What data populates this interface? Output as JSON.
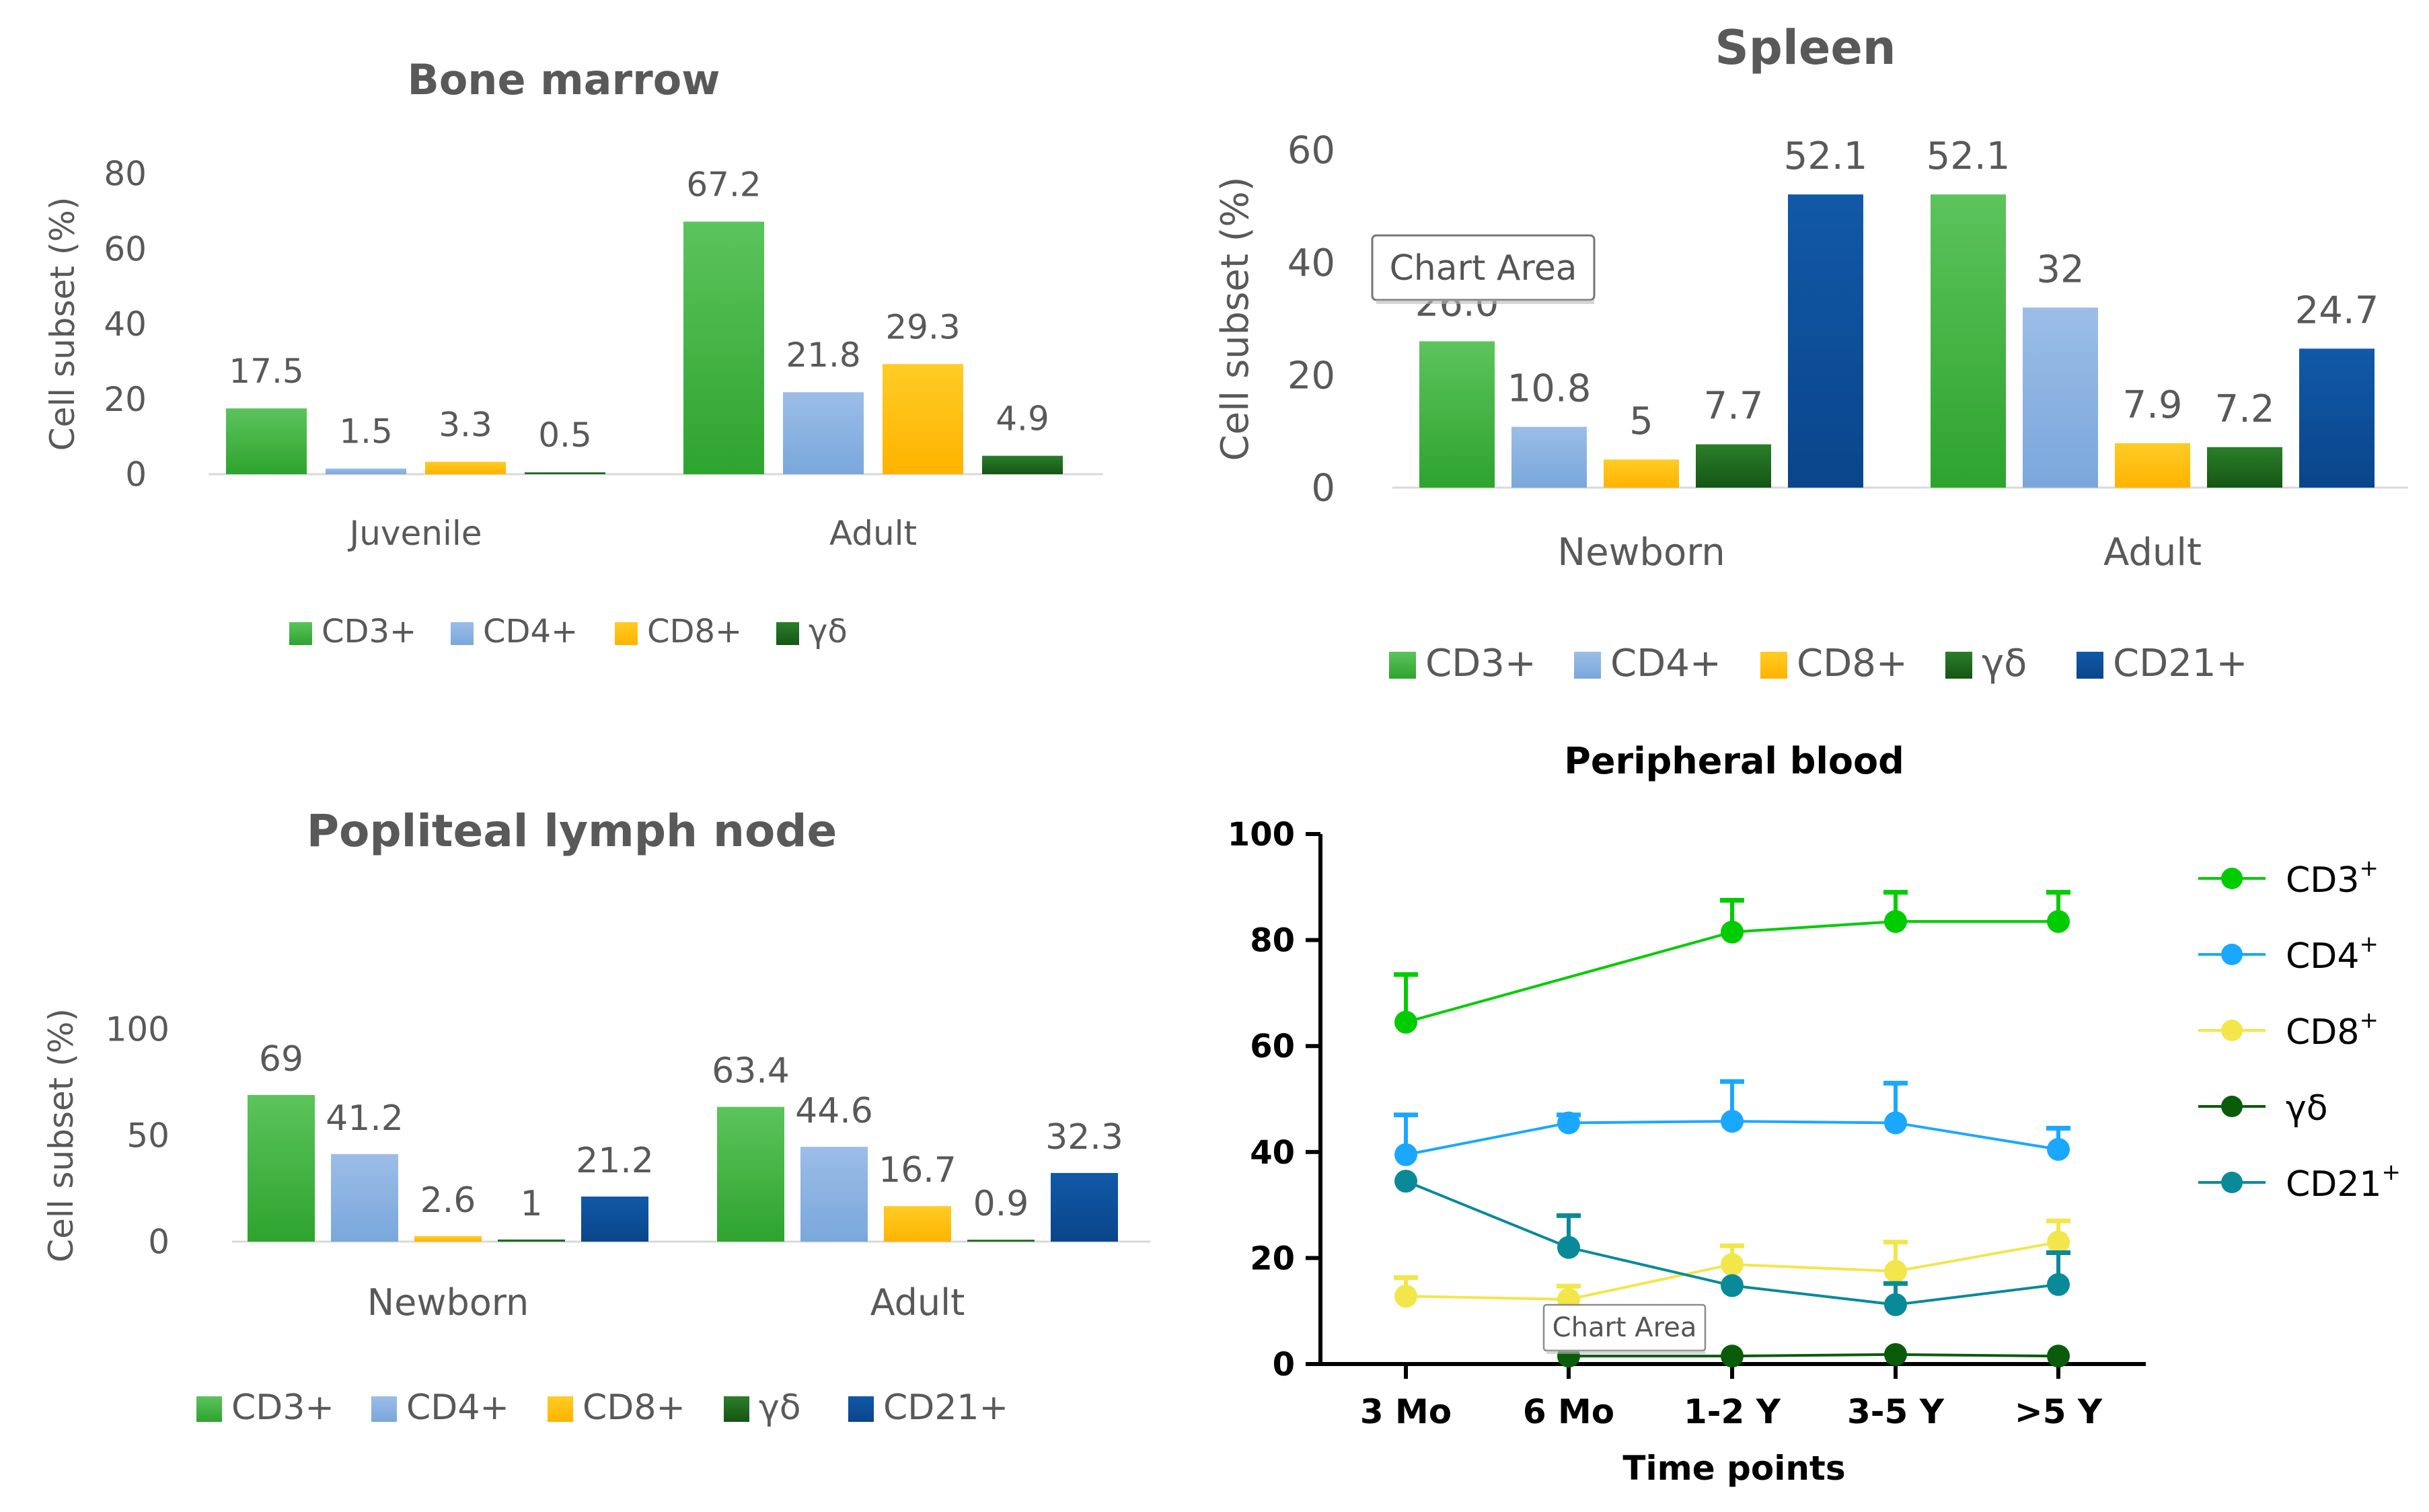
{
  "colors": {
    "CD3+": "#3db43d",
    "CD4+": "#8db3e2",
    "CD8+": "#ffc000",
    "gd": "#1e6b1e",
    "CD21+": "#0b4f9c",
    "axis_text": "#595959",
    "line_cd3": "#00cc00",
    "line_cd4": "#1aa8ff",
    "line_cd8": "#f2e64a",
    "line_gd": "#0a5c0a",
    "line_cd21": "#0a8a99"
  },
  "tooltips": [
    "Chart Area",
    "Chart Area"
  ],
  "chart_data": [
    {
      "id": "bone_marrow",
      "type": "bar",
      "title": "Bone marrow",
      "ylabel": "Cell subset (%)",
      "xlabel": "",
      "ylim": [
        0,
        80
      ],
      "yticks": [
        "0",
        "20",
        "40",
        "60",
        "80"
      ],
      "categories": [
        "Juvenile",
        "Adult"
      ],
      "series": [
        {
          "name": "CD3+",
          "key": "CD3+",
          "values": [
            17.5,
            67.2
          ],
          "labels": [
            "17.5",
            "67.2"
          ]
        },
        {
          "name": "CD4+",
          "key": "CD4+",
          "values": [
            1.5,
            21.8
          ],
          "labels": [
            "1.5",
            "21.8"
          ]
        },
        {
          "name": "CD8+",
          "key": "CD8+",
          "values": [
            3.3,
            29.3
          ],
          "labels": [
            "3.3",
            "29.3"
          ]
        },
        {
          "name": "γδ",
          "key": "gd",
          "values": [
            0.5,
            4.9
          ],
          "labels": [
            "0.5",
            "4.9"
          ]
        }
      ],
      "legend": "bottom"
    },
    {
      "id": "spleen",
      "type": "bar",
      "title": "Spleen",
      "ylabel": "Cell subset (%)",
      "xlabel": "",
      "ylim": [
        0,
        60
      ],
      "yticks": [
        "0",
        "20",
        "40",
        "60"
      ],
      "categories": [
        "Newborn",
        "Adult"
      ],
      "series": [
        {
          "name": "CD3+",
          "key": "CD3+",
          "values": [
            26.0,
            52.1
          ],
          "labels": [
            "26.0",
            "52.1"
          ]
        },
        {
          "name": "CD4+",
          "key": "CD4+",
          "values": [
            10.8,
            32
          ],
          "labels": [
            "10.8",
            "32"
          ]
        },
        {
          "name": "CD8+",
          "key": "CD8+",
          "values": [
            5,
            7.9
          ],
          "labels": [
            "5",
            "7.9"
          ]
        },
        {
          "name": "γδ",
          "key": "gd",
          "values": [
            7.7,
            7.2
          ],
          "labels": [
            "7.7",
            "7.2"
          ]
        },
        {
          "name": "CD21+",
          "key": "CD21+",
          "values": [
            52.1,
            24.7
          ],
          "labels": [
            "52.1",
            "24.7"
          ]
        }
      ],
      "legend": "bottom"
    },
    {
      "id": "popliteal",
      "type": "bar",
      "title": "Popliteal lymph node",
      "ylabel": "Cell subset (%)",
      "xlabel": "",
      "ylim": [
        0,
        100
      ],
      "yticks": [
        "0",
        "50",
        "100"
      ],
      "categories": [
        "Newborn",
        "Adult"
      ],
      "series": [
        {
          "name": "CD3+",
          "key": "CD3+",
          "values": [
            69,
            63.4
          ],
          "labels": [
            "69",
            "63.4"
          ]
        },
        {
          "name": "CD4+",
          "key": "CD4+",
          "values": [
            41.2,
            44.6
          ],
          "labels": [
            "41.2",
            "44.6"
          ]
        },
        {
          "name": "CD8+",
          "key": "CD8+",
          "values": [
            2.6,
            16.7
          ],
          "labels": [
            "2.6",
            "16.7"
          ]
        },
        {
          "name": "γδ",
          "key": "gd",
          "values": [
            1,
            0.9
          ],
          "labels": [
            "1",
            "0.9"
          ]
        },
        {
          "name": "CD21+",
          "key": "CD21+",
          "values": [
            21.2,
            32.3
          ],
          "labels": [
            "21.2",
            "32.3"
          ]
        }
      ],
      "legend": "bottom"
    },
    {
      "id": "peripheral",
      "type": "line",
      "title": "Peripheral blood",
      "xlabel": "Time points",
      "ylabel": "",
      "ylim": [
        0,
        100
      ],
      "yticks": [
        "0",
        "20",
        "40",
        "60",
        "80",
        "100"
      ],
      "categories": [
        "3 Mo",
        "6 Mo",
        "1-2 Y",
        "3-5 Y",
        ">5 Y"
      ],
      "series": [
        {
          "name": "CD3",
          "sup": "+",
          "key": "line_cd3",
          "values": [
            64.5,
            null,
            81.5,
            83.5,
            83.5
          ],
          "err": [
            9,
            null,
            6,
            5.5,
            5.5
          ]
        },
        {
          "name": "CD4",
          "sup": "+",
          "key": "line_cd4",
          "values": [
            39.5,
            45.5,
            45.8,
            45.5,
            40.5
          ],
          "err": [
            7.5,
            1.5,
            7.5,
            7.5,
            4
          ]
        },
        {
          "name": "CD8",
          "sup": "+",
          "key": "line_cd8",
          "values": [
            12.8,
            12.2,
            18.8,
            17.5,
            23
          ],
          "err": [
            3.5,
            2.5,
            3.5,
            5.5,
            4
          ]
        },
        {
          "name": "γδ",
          "sup": "",
          "key": "line_gd",
          "values": [
            null,
            1.5,
            1.5,
            1.8,
            1.5
          ],
          "err": [
            null,
            null,
            null,
            null,
            null
          ]
        },
        {
          "name": "CD21",
          "sup": "+",
          "key": "line_cd21",
          "values": [
            34.5,
            22,
            14.8,
            11.2,
            15
          ],
          "err": [
            null,
            6,
            null,
            4,
            6
          ]
        }
      ],
      "legend": "right"
    }
  ]
}
